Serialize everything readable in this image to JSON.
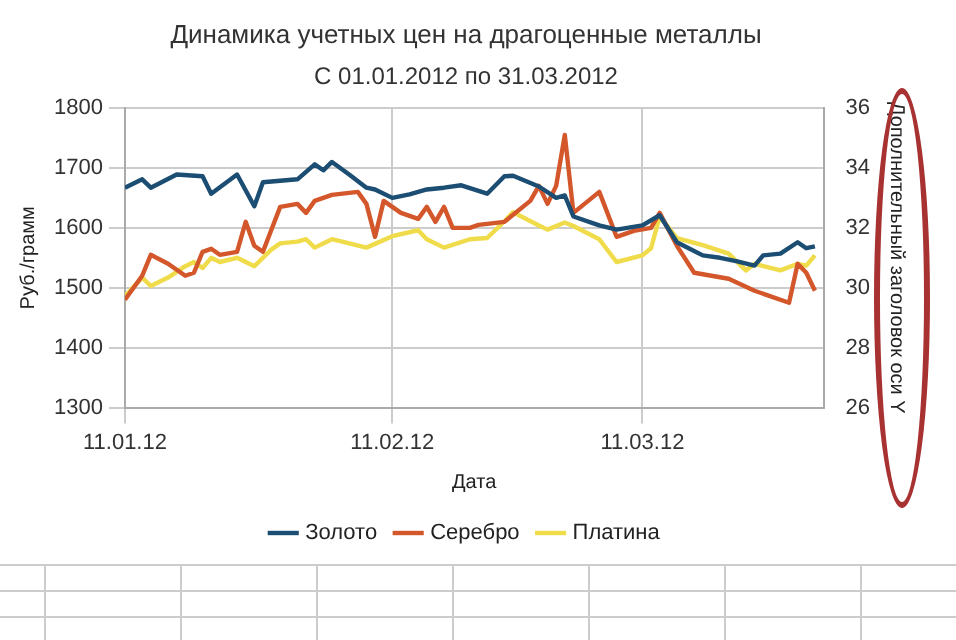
{
  "chart_data": {
    "type": "line",
    "title": "Динамика учетных цен на драгоценные металлы",
    "subtitle": "С 01.01.2012 по 31.03.2012",
    "xlabel": "Дата",
    "ylabel": "Руб./грамм",
    "y2label": "Дополнительный заголовок оси Y",
    "xlim": [
      "2012-01-11",
      "2012-04-01"
    ],
    "xticks": [
      {
        "value": "2012-01-11",
        "label": "11.01.12"
      },
      {
        "value": "2012-02-11",
        "label": "11.02.12"
      },
      {
        "value": "2012-03-11",
        "label": "11.03.12"
      }
    ],
    "ylim": [
      1300,
      1800
    ],
    "yticks": [
      1300,
      1400,
      1500,
      1600,
      1700,
      1800
    ],
    "y2lim": [
      26,
      36
    ],
    "y2ticks": [
      26,
      28,
      30,
      32,
      34,
      36
    ],
    "grid": true,
    "legend": "bottom",
    "marker": "none",
    "line_style": "solid",
    "series": [
      {
        "name": "Золото",
        "color": "#1c4e73",
        "x": [
          "2012-01-11",
          "2012-01-13",
          "2012-01-14",
          "2012-01-17",
          "2012-01-20",
          "2012-01-21",
          "2012-01-24",
          "2012-01-26",
          "2012-01-27",
          "2012-01-31",
          "2012-02-02",
          "2012-02-03",
          "2012-02-04",
          "2012-02-06",
          "2012-02-08",
          "2012-02-09",
          "2012-02-11",
          "2012-02-13",
          "2012-02-15",
          "2012-02-17",
          "2012-02-19",
          "2012-02-22",
          "2012-02-24",
          "2012-02-25",
          "2012-02-28",
          "2012-03-01",
          "2012-03-02",
          "2012-03-03",
          "2012-03-06",
          "2012-03-08",
          "2012-03-11",
          "2012-03-13",
          "2012-03-15",
          "2012-03-18",
          "2012-03-20",
          "2012-03-22",
          "2012-03-24",
          "2012-03-25",
          "2012-03-27",
          "2012-03-29",
          "2012-03-30",
          "2012-03-31"
        ],
        "values": [
          1667,
          1681,
          1667,
          1689,
          1686,
          1657,
          1689,
          1636,
          1676,
          1681,
          1706,
          1696,
          1710,
          1689,
          1667,
          1664,
          1650,
          1656,
          1664,
          1667,
          1671,
          1657,
          1686,
          1687,
          1669,
          1650,
          1654,
          1619,
          1604,
          1597,
          1604,
          1621,
          1576,
          1554,
          1550,
          1544,
          1537,
          1554,
          1557,
          1576,
          1566,
          1569
        ]
      },
      {
        "name": "Серебро",
        "color": "#d3572b",
        "axis": "y2",
        "x": [
          "2012-01-11",
          "2012-01-13",
          "2012-01-14",
          "2012-01-16",
          "2012-01-18",
          "2012-01-19",
          "2012-01-20",
          "2012-01-21",
          "2012-01-22",
          "2012-01-24",
          "2012-01-25",
          "2012-01-26",
          "2012-01-27",
          "2012-01-29",
          "2012-01-31",
          "2012-02-01",
          "2012-02-02",
          "2012-02-04",
          "2012-02-07",
          "2012-02-08",
          "2012-02-09",
          "2012-02-10",
          "2012-02-12",
          "2012-02-14",
          "2012-02-15",
          "2012-02-16",
          "2012-02-17",
          "2012-02-18",
          "2012-02-20",
          "2012-02-21",
          "2012-02-24",
          "2012-02-27",
          "2012-02-28",
          "2012-02-29",
          "2012-03-01",
          "2012-03-02",
          "2012-03-03",
          "2012-03-06",
          "2012-03-08",
          "2012-03-10",
          "2012-03-12",
          "2012-03-13",
          "2012-03-15",
          "2012-03-17",
          "2012-03-19",
          "2012-03-21",
          "2012-03-24",
          "2012-03-28",
          "2012-03-29",
          "2012-03-30",
          "2012-03-31"
        ],
        "values": [
          29.6,
          30.4,
          31.1,
          30.8,
          30.4,
          30.5,
          31.2,
          31.3,
          31.1,
          31.2,
          32.2,
          31.4,
          31.2,
          32.7,
          32.8,
          32.5,
          32.9,
          33.1,
          33.2,
          32.8,
          31.7,
          32.9,
          32.5,
          32.3,
          32.7,
          32.2,
          32.7,
          32.0,
          32.0,
          32.1,
          32.2,
          32.9,
          33.4,
          32.8,
          33.4,
          35.1,
          32.5,
          33.2,
          31.7,
          31.9,
          32.0,
          32.5,
          31.4,
          30.5,
          30.4,
          30.3,
          29.9,
          29.5,
          30.8,
          30.5,
          29.9
        ]
      },
      {
        "name": "Платина",
        "color": "#f0dc4a",
        "x": [
          "2012-01-11",
          "2012-01-13",
          "2012-01-14",
          "2012-01-16",
          "2012-01-18",
          "2012-01-19",
          "2012-01-20",
          "2012-01-21",
          "2012-01-22",
          "2012-01-24",
          "2012-01-26",
          "2012-01-28",
          "2012-01-29",
          "2012-01-31",
          "2012-02-01",
          "2012-02-02",
          "2012-02-04",
          "2012-02-08",
          "2012-02-11",
          "2012-02-14",
          "2012-02-15",
          "2012-02-17",
          "2012-02-20",
          "2012-02-22",
          "2012-02-24",
          "2012-02-25",
          "2012-02-28",
          "2012-02-29",
          "2012-03-02",
          "2012-03-03",
          "2012-03-06",
          "2012-03-08",
          "2012-03-11",
          "2012-03-12",
          "2012-03-13",
          "2012-03-15",
          "2012-03-18",
          "2012-03-21",
          "2012-03-23",
          "2012-03-24",
          "2012-03-27",
          "2012-03-29",
          "2012-03-30",
          "2012-03-31"
        ],
        "values": [
          1486,
          1517,
          1503,
          1517,
          1536,
          1543,
          1533,
          1550,
          1543,
          1550,
          1536,
          1564,
          1574,
          1577,
          1581,
          1567,
          1581,
          1567,
          1586,
          1596,
          1581,
          1567,
          1581,
          1583,
          1611,
          1626,
          1604,
          1597,
          1609,
          1603,
          1581,
          1543,
          1554,
          1566,
          1619,
          1583,
          1571,
          1557,
          1529,
          1540,
          1529,
          1540,
          1537,
          1554
        ]
      }
    ]
  }
}
